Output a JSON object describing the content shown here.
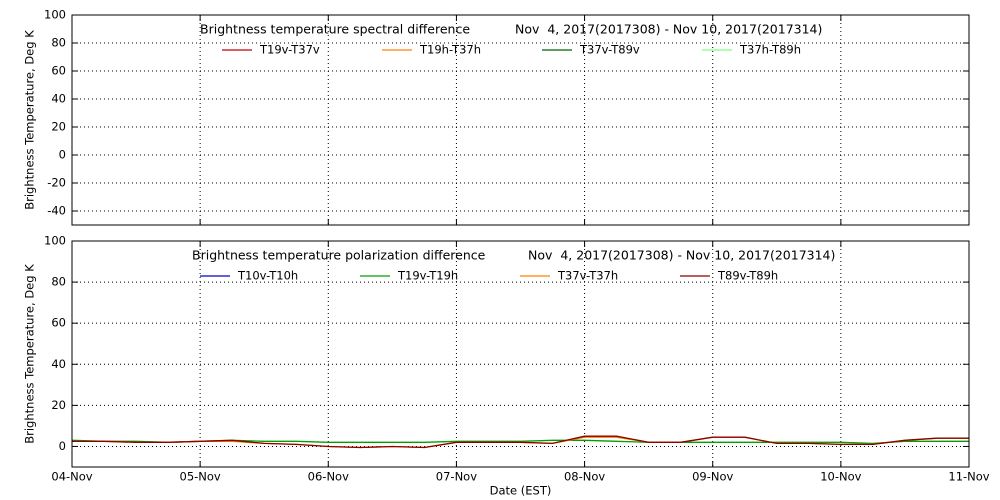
{
  "chart_data": [
    {
      "type": "line",
      "title": "Brightness temperature spectral difference",
      "subtitle": "Nov  4, 2017(2017308) - Nov 10, 2017(2017314)",
      "y_label": "Brightness Temperature, Deg K",
      "x": [],
      "series": [
        {
          "name": "T19v-T37v",
          "color": "#c00000",
          "values": []
        },
        {
          "name": "T19h-T37h",
          "color": "#ff8000",
          "values": []
        },
        {
          "name": "T37v-T89v",
          "color": "#006400",
          "values": []
        },
        {
          "name": "T37h-T89h",
          "color": "#80ff80",
          "values": []
        }
      ],
      "xlim": [
        0,
        7
      ],
      "xticks": [
        0,
        1,
        2,
        3,
        4,
        5,
        6,
        7
      ],
      "xtick_labels": false,
      "ylim": [
        -50,
        100
      ],
      "yticks": [
        -40,
        -20,
        0,
        20,
        40,
        60,
        80,
        100
      ],
      "grid": true
    },
    {
      "type": "line",
      "title": "Brightness temperature polarization difference",
      "subtitle": "Nov  4, 2017(2017308) - Nov 10, 2017(2017314)",
      "y_label": "Brightness Temperature, Deg K",
      "x_label": "Date (EST)",
      "x": [
        0,
        0.25,
        0.5,
        0.75,
        1,
        1.25,
        1.5,
        1.75,
        2,
        2.25,
        2.5,
        2.75,
        3,
        3.25,
        3.5,
        3.75,
        4,
        4.25,
        4.5,
        4.75,
        5,
        5.25,
        5.5,
        5.75,
        6,
        6.25,
        6.5,
        6.75,
        7
      ],
      "series": [
        {
          "name": "T10v-T10h",
          "color": "#0000c0",
          "values": [
            null,
            null,
            null,
            null,
            null,
            null,
            null,
            null,
            null,
            null,
            null,
            null,
            null,
            null,
            null,
            null,
            null,
            null,
            null,
            null,
            null,
            null,
            null,
            null,
            null,
            null,
            null,
            null,
            null
          ]
        },
        {
          "name": "T19v-T19h",
          "color": "#00a000",
          "values": [
            3,
            2.5,
            2.5,
            2,
            2.5,
            3,
            2.5,
            2.5,
            2,
            2,
            2,
            2,
            2.5,
            2.5,
            2.5,
            3,
            3,
            2.5,
            2,
            2,
            2,
            2,
            2,
            2,
            2,
            1.5,
            2.5,
            2.5,
            2.5
          ]
        },
        {
          "name": "T37v-T37h",
          "color": "#ff8000",
          "values": [
            2.5,
            2.5,
            2,
            2,
            2.5,
            2.5,
            1.5,
            1,
            0,
            -0.5,
            0,
            -0.5,
            2,
            2,
            2,
            1.5,
            4.5,
            4.5,
            2,
            2,
            4.5,
            4.5,
            1.5,
            1.5,
            1,
            1,
            3,
            4,
            4
          ]
        },
        {
          "name": "T89v-T89h",
          "color": "#8b0000",
          "values": [
            2.5,
            2.5,
            2,
            2,
            2.5,
            3,
            1.5,
            1,
            0,
            -0.5,
            0,
            -0.5,
            2,
            2,
            2,
            1.5,
            5,
            5,
            2,
            2,
            4.5,
            4.5,
            1.5,
            1.5,
            1,
            1,
            3,
            4,
            4
          ]
        }
      ],
      "xlim": [
        0,
        7
      ],
      "xticks": [
        {
          "value": 0,
          "label": "04-Nov"
        },
        {
          "value": 1,
          "label": "05-Nov"
        },
        {
          "value": 2,
          "label": "06-Nov"
        },
        {
          "value": 3,
          "label": "07-Nov"
        },
        {
          "value": 4,
          "label": "08-Nov"
        },
        {
          "value": 5,
          "label": "09-Nov"
        },
        {
          "value": 6,
          "label": "10-Nov"
        },
        {
          "value": 7,
          "label": "11-Nov"
        }
      ],
      "xtick_labels": true,
      "ylim": [
        -10,
        100
      ],
      "yticks": [
        0,
        20,
        40,
        60,
        80,
        100
      ],
      "grid": true
    }
  ]
}
